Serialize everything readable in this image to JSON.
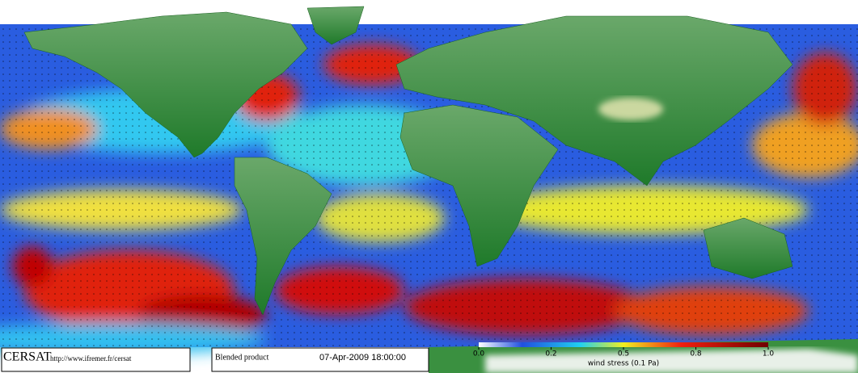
{
  "footer": {
    "logo": "CERSAT",
    "url": "http://www.ifremer.fr/cersat",
    "product": "Blended product",
    "timestamp": "07-Apr-2009 18:00:00"
  },
  "colorbar": {
    "ticks": [
      "0.0",
      "0.2",
      "0.5",
      "0.8",
      "1.0"
    ],
    "label": "wind stress (0.1 Pa)"
  }
}
